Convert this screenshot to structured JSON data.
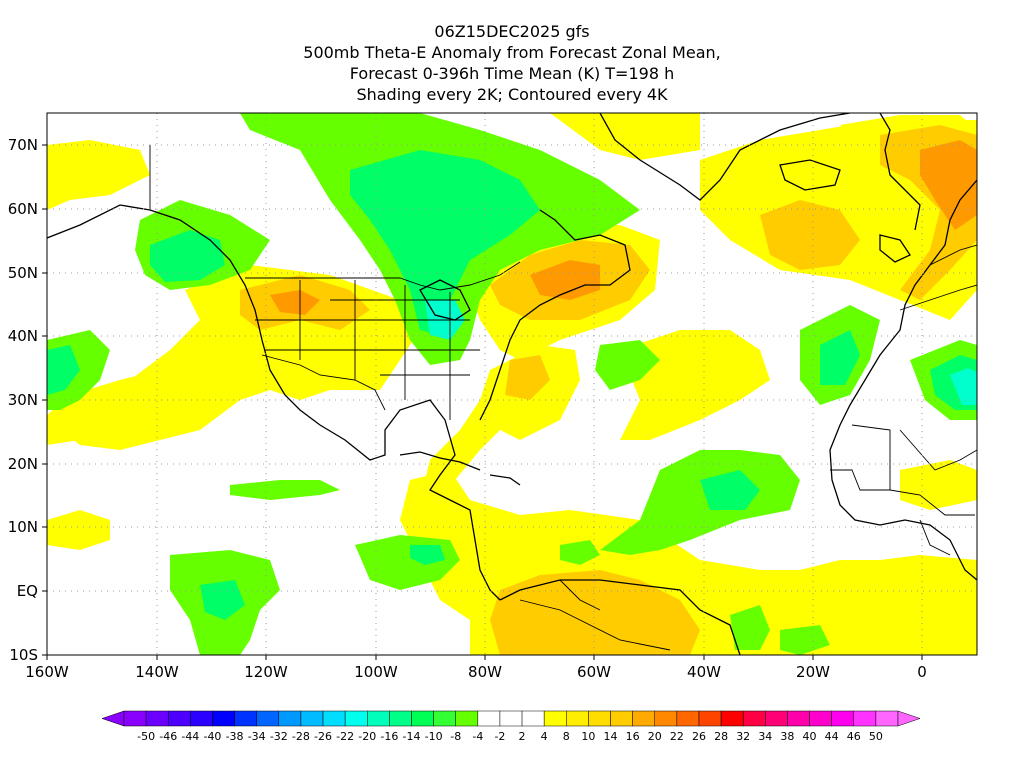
{
  "header": {
    "lines": [
      "06Z15DEC2025 gfs",
      "500mb Theta-E Anomaly from Forecast Zonal Mean,",
      "Forecast 0-396h Time Mean (K) T=198 h",
      "Shading every 2K; Contoured every 4K"
    ]
  },
  "map": {
    "lat_labels": [
      "70N",
      "60N",
      "50N",
      "40N",
      "30N",
      "20N",
      "10N",
      "EQ",
      "10S"
    ],
    "lon_labels": [
      "160W",
      "140W",
      "120W",
      "100W",
      "80W",
      "60W",
      "40W",
      "20W",
      "0"
    ],
    "lat_range": [
      -10,
      75
    ],
    "lon_range": [
      -160,
      10
    ],
    "grid": true
  },
  "colorbar": {
    "labels": [
      "-50",
      "-46",
      "-44",
      "-40",
      "-38",
      "-34",
      "-32",
      "-28",
      "-26",
      "-22",
      "-20",
      "-16",
      "-14",
      "-10",
      "-8",
      "-4",
      "-2",
      "2",
      "4",
      "8",
      "10",
      "14",
      "16",
      "20",
      "22",
      "26",
      "28",
      "32",
      "34",
      "38",
      "40",
      "44",
      "46",
      "50"
    ],
    "colors": [
      "#8a00ff",
      "#6b00ff",
      "#4d00ff",
      "#2c00ff",
      "#0000ff",
      "#0033ff",
      "#0066ff",
      "#0099ff",
      "#00bbff",
      "#00ddff",
      "#00ffee",
      "#00ffbb",
      "#00ff88",
      "#00ff55",
      "#33ff33",
      "#66ff00",
      "#ffffff",
      "#ffffff",
      "#ffffff",
      "#ffff00",
      "#ffee00",
      "#ffdd00",
      "#ffcc00",
      "#ffaa00",
      "#ff8800",
      "#ff6600",
      "#ff4400",
      "#ff0000",
      "#ff0044",
      "#ff0077",
      "#ff00aa",
      "#ff00cc",
      "#ff00ee",
      "#ff33ff",
      "#ff66ff"
    ]
  }
}
